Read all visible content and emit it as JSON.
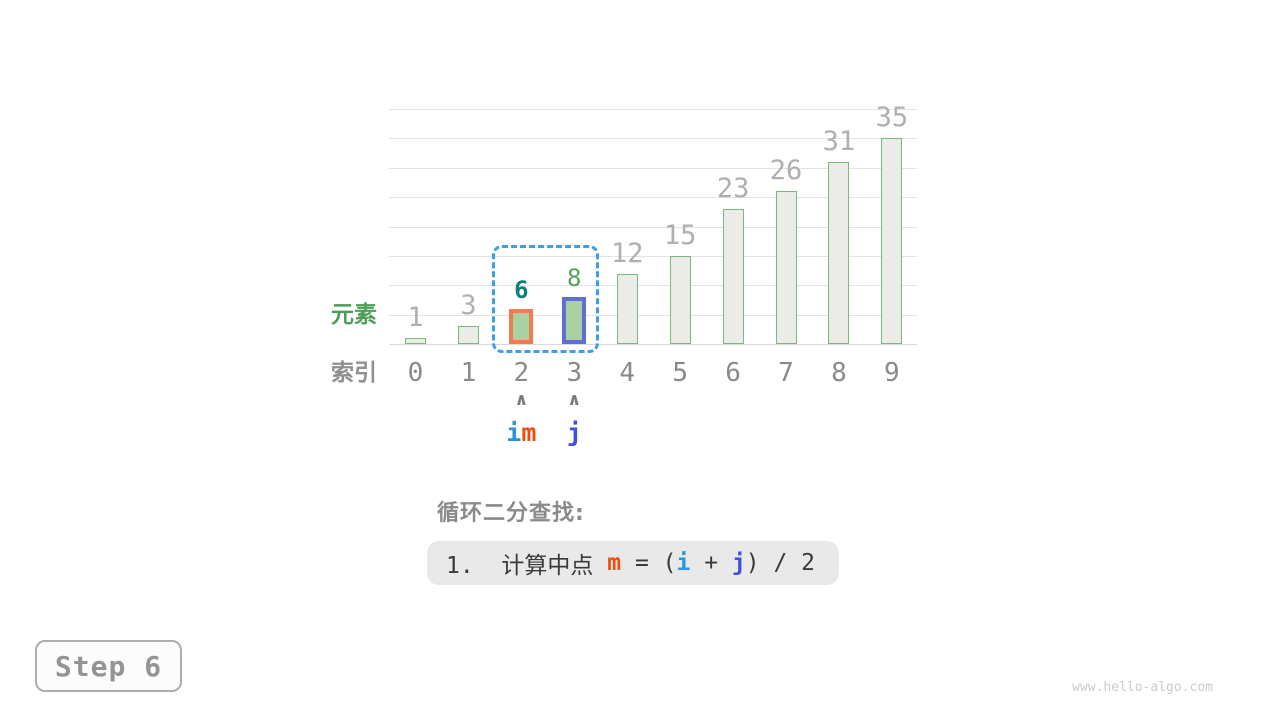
{
  "chart_data": {
    "type": "bar",
    "title": "",
    "categories": [
      "0",
      "1",
      "2",
      "3",
      "4",
      "5",
      "6",
      "7",
      "8",
      "9"
    ],
    "values": [
      1,
      3,
      6,
      8,
      12,
      15,
      23,
      26,
      31,
      35
    ],
    "xlabel": "索引",
    "ylabel": "元素",
    "ylim": [
      0,
      40
    ],
    "grid_step": 5,
    "grid": true,
    "legend_position": "none",
    "highlighted_bars": [
      {
        "index": 2,
        "value": 6,
        "border_color": "#EE7E4F",
        "fill": "#A9D1A1",
        "value_label_color": "#12807A",
        "value_label_bold": true
      },
      {
        "index": 3,
        "value": 8,
        "border_color": "#5F6FD6",
        "fill": "#A9D1A1",
        "value_label_color": "#57A157",
        "value_label_bold": false
      }
    ],
    "selection_range": {
      "from_index": 2,
      "to_index": 3,
      "style": "dashed",
      "color": "#3F9EE8"
    }
  },
  "chart_labels": {
    "elements": "元素",
    "index": "索引"
  },
  "pointers": [
    {
      "index": 2,
      "arrow": "∧",
      "labels": [
        {
          "text": "i",
          "color": "#2E93D9"
        },
        {
          "text": "m",
          "color": "#EB4F12"
        }
      ]
    },
    {
      "index": 3,
      "arrow": "∧",
      "labels": [
        {
          "text": "j",
          "color": "#4050D8"
        }
      ]
    }
  ],
  "caption": {
    "text": "循环二分查找:"
  },
  "formula": {
    "segments": [
      {
        "text": "1.  计算中点 ",
        "color": "#3A3A3A",
        "bold": false
      },
      {
        "text": "m",
        "color": "#EB4F12",
        "bold": true
      },
      {
        "text": " = (",
        "color": "#3A3A3A",
        "bold": false
      },
      {
        "text": "i",
        "color": "#2E93D9",
        "bold": true
      },
      {
        "text": " + ",
        "color": "#3A3A3A",
        "bold": false
      },
      {
        "text": "j",
        "color": "#4050D8",
        "bold": true
      },
      {
        "text": ") / 2",
        "color": "#3A3A3A",
        "bold": false
      }
    ]
  },
  "step_badge": {
    "label": "Step 6"
  },
  "watermark": {
    "text": "www.hello-algo.com"
  },
  "colors": {
    "bar_fill": "#EBEBE8",
    "bar_border": "#7FB57F",
    "highlight_fill": "#A9D1A1",
    "grid": "#E3E3E3",
    "value_label": "#AFAFAF",
    "index_label": "#8A8A8A",
    "arrow": "#7A7A7A",
    "caption": "#8A8A8A",
    "formula_bg": "#E9E9E9",
    "element_row_label": "#4F9D58",
    "index_row_label": "#8F8F8F",
    "step_text": "#949494",
    "watermark": "#CBCBCB"
  }
}
